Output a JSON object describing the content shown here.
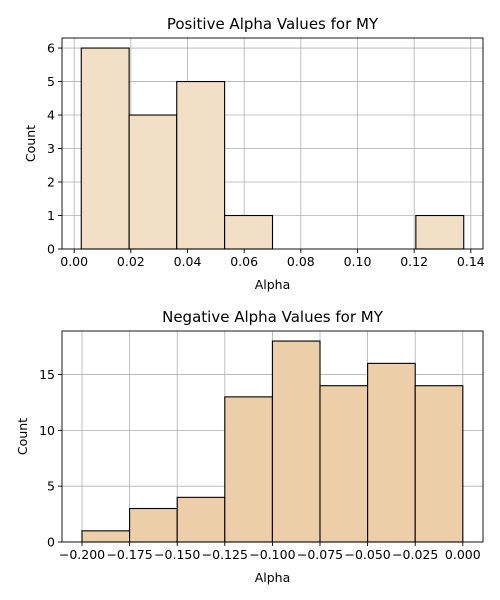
{
  "colors": {
    "positive_bar": "#f1e0c5",
    "negative_bar": "#eccfa8",
    "bar_edge": "#000000",
    "grid": "#b0b0b0"
  },
  "chart_data": [
    {
      "type": "bar",
      "title": "Positive Alpha Values for MY",
      "xlabel": "Alpha",
      "ylabel": "Count",
      "grid": true,
      "bins": [
        {
          "x0": 0.0025,
          "x1": 0.0194,
          "count": 6
        },
        {
          "x0": 0.0194,
          "x1": 0.0362,
          "count": 4
        },
        {
          "x0": 0.0362,
          "x1": 0.0531,
          "count": 5
        },
        {
          "x0": 0.0531,
          "x1": 0.07,
          "count": 1
        },
        {
          "x0": 0.07,
          "x1": 0.0869,
          "count": 0
        },
        {
          "x0": 0.0869,
          "x1": 0.1038,
          "count": 0
        },
        {
          "x0": 0.1038,
          "x1": 0.1206,
          "count": 0
        },
        {
          "x0": 0.1206,
          "x1": 0.1375,
          "count": 1
        }
      ],
      "xlim": [
        -0.0043,
        0.1443
      ],
      "ylim": [
        0,
        6.3
      ],
      "xticks": [
        0.0,
        0.02,
        0.04,
        0.06,
        0.08,
        0.1,
        0.12,
        0.14
      ],
      "xtick_labels": [
        "0.00",
        "0.02",
        "0.04",
        "0.06",
        "0.08",
        "0.10",
        "0.12",
        "0.14"
      ],
      "yticks": [
        0,
        1,
        2,
        3,
        4,
        5,
        6
      ],
      "ytick_labels": [
        "0",
        "1",
        "2",
        "3",
        "4",
        "5",
        "6"
      ]
    },
    {
      "type": "bar",
      "title": "Negative Alpha Values for MY",
      "xlabel": "Alpha",
      "ylabel": "Count",
      "grid": true,
      "bins": [
        {
          "x0": -0.2,
          "x1": -0.175,
          "count": 1
        },
        {
          "x0": -0.175,
          "x1": -0.15,
          "count": 3
        },
        {
          "x0": -0.15,
          "x1": -0.125,
          "count": 4
        },
        {
          "x0": -0.125,
          "x1": -0.1,
          "count": 13
        },
        {
          "x0": -0.1,
          "x1": -0.075,
          "count": 18
        },
        {
          "x0": -0.075,
          "x1": -0.05,
          "count": 14
        },
        {
          "x0": -0.05,
          "x1": -0.025,
          "count": 16
        },
        {
          "x0": -0.025,
          "x1": 0.0,
          "count": 14
        }
      ],
      "xlim": [
        -0.2105,
        0.0106
      ],
      "ylim": [
        0,
        18.9
      ],
      "xticks": [
        -0.2,
        -0.175,
        -0.15,
        -0.125,
        -0.1,
        -0.075,
        -0.05,
        -0.025,
        0.0
      ],
      "xtick_labels": [
        "−0.200",
        "−0.175",
        "−0.150",
        "−0.125",
        "−0.100",
        "−0.075",
        "−0.050",
        "−0.025",
        "0.000"
      ],
      "yticks": [
        0,
        5,
        10,
        15
      ],
      "ytick_labels": [
        "0",
        "5",
        "10",
        "15"
      ]
    }
  ]
}
